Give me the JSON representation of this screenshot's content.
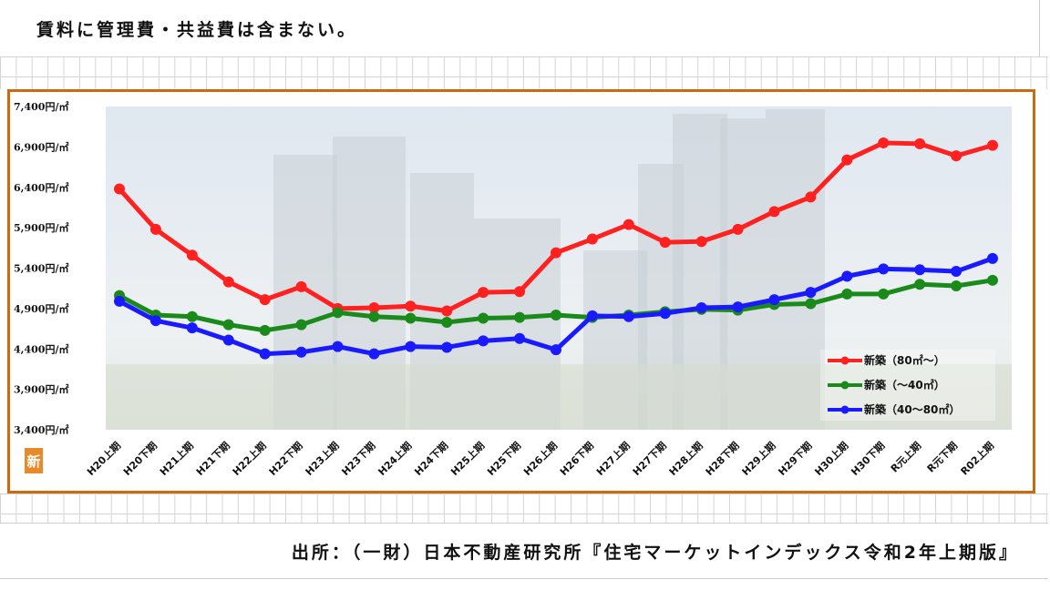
{
  "note": "賃料に管理費・共益費は含まない。",
  "source": "出所：（一財）日本不動産研究所『住宅マーケットインデックス令和2年上期版』",
  "chart_data": {
    "type": "line",
    "y_tick_labels": [
      "7,400円/㎡",
      "6,900円/㎡",
      "6,400円/㎡",
      "5,900円/㎡",
      "5,400円/㎡",
      "4,900円/㎡",
      "4,400円/㎡",
      "3,900円/㎡",
      "3,400円/㎡"
    ],
    "ylim": [
      3400,
      7400
    ],
    "categories": [
      "H20上期",
      "H20下期",
      "H21上期",
      "H21下期",
      "H22上期",
      "H22下期",
      "H23上期",
      "H23下期",
      "H24上期",
      "H24下期",
      "H25上期",
      "H25下期",
      "H26上期",
      "H26下期",
      "H27上期",
      "H27下期",
      "H28上期",
      "H28下期",
      "H29上期",
      "H29下期",
      "H30上期",
      "H30下期",
      "R元上期",
      "R元下期",
      "R02上期"
    ],
    "series": [
      {
        "name": "新築（80㎡～）",
        "color": "#ff2020",
        "values": [
          6380,
          5880,
          5560,
          5230,
          5010,
          5170,
          4900,
          4910,
          4930,
          4870,
          5100,
          5110,
          5590,
          5760,
          5940,
          5720,
          5730,
          5880,
          6100,
          6280,
          6740,
          6950,
          6940,
          6790,
          6920
        ]
      },
      {
        "name": "新築（～40㎡）",
        "color": "#1a8a1a",
        "values": [
          5060,
          4820,
          4800,
          4700,
          4630,
          4700,
          4850,
          4800,
          4780,
          4730,
          4780,
          4790,
          4820,
          4790,
          4820,
          4860,
          4890,
          4880,
          4950,
          4960,
          5080,
          5080,
          5200,
          5180,
          5250
        ]
      },
      {
        "name": "新築（40～80㎡）",
        "color": "#1a1aff",
        "values": [
          4990,
          4750,
          4660,
          4510,
          4340,
          4360,
          4430,
          4340,
          4430,
          4420,
          4500,
          4530,
          4390,
          4810,
          4800,
          4840,
          4910,
          4920,
          5010,
          5100,
          5300,
          5390,
          5380,
          5360,
          5520
        ]
      }
    ],
    "legend_position": "lower-right"
  }
}
